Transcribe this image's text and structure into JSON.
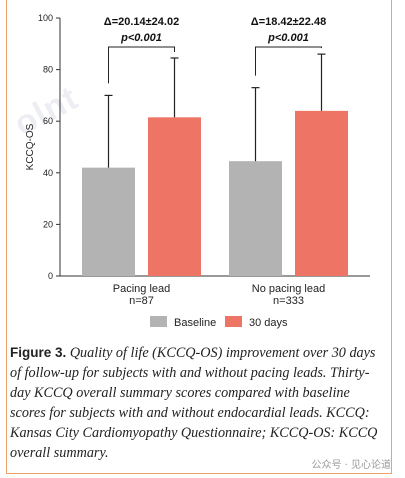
{
  "chart_data": {
    "type": "bar",
    "ylabel": "KCCQ-OS",
    "ylim": [
      0,
      100
    ],
    "yticks": [
      0,
      20,
      40,
      60,
      80,
      100
    ],
    "groups": [
      {
        "label": "Pacing lead",
        "n": "n=87",
        "annotation": "Δ=20.14±24.02",
        "pvalue": "p<0.001"
      },
      {
        "label": "No pacing lead",
        "n": "n=333",
        "annotation": "Δ=18.42±22.48",
        "pvalue": "p<0.001"
      }
    ],
    "series": [
      {
        "name": "Baseline",
        "color": "#b3b3b3",
        "values": [
          42,
          44.5
        ],
        "error_upper": [
          70,
          73
        ]
      },
      {
        "name": "30 days",
        "color": "#ee7466",
        "values": [
          61.5,
          64
        ],
        "error_upper": [
          84.5,
          86
        ]
      }
    ],
    "legend_position": "bottom"
  },
  "caption": {
    "label": "Figure 3.",
    "text": "Quality of life (KCCQ-OS) improvement over 30 days of follow-up for subjects with and without pacing leads. Thirty-day KCCQ overall summary scores compared with baseline scores for subjects with and without endocardial leads. KCCQ: Kansas City Cardiomyopathy Questionnaire; KCCQ-OS: KCCQ overall summary."
  },
  "watermark": "公众号 · 见心论道",
  "ghost_watermark": "olnt"
}
